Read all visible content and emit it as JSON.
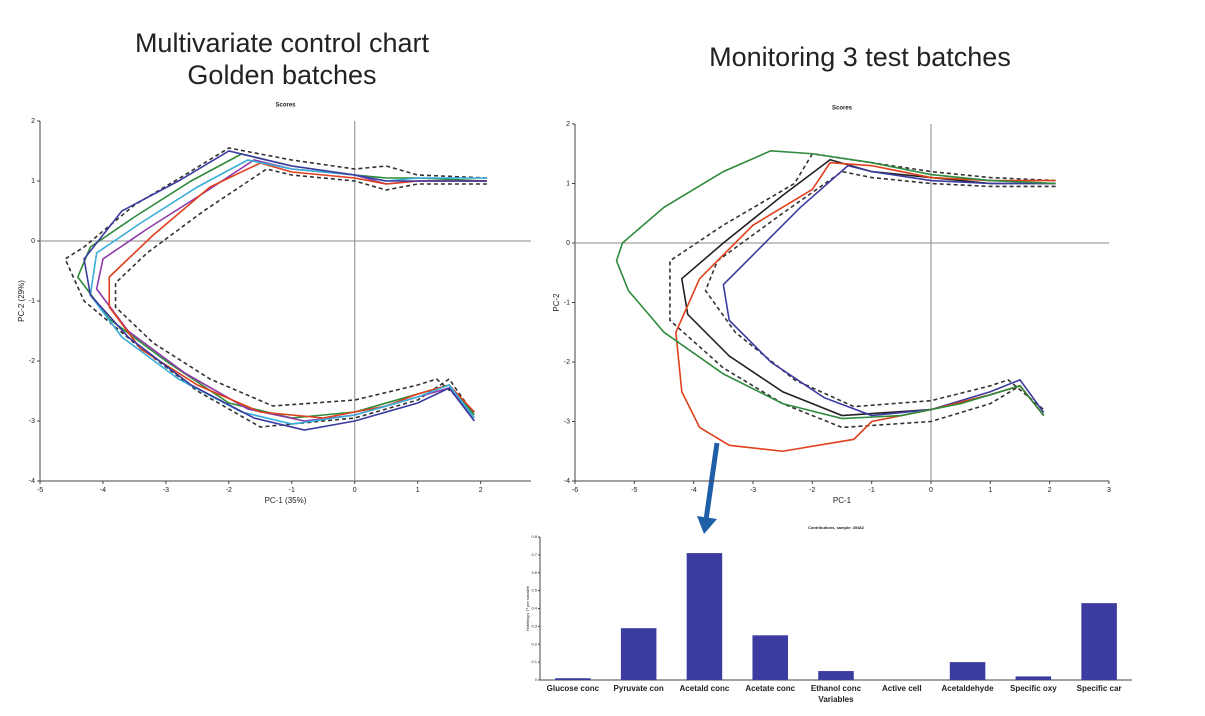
{
  "headings": {
    "left": [
      "Multivariate control chart",
      "Golden batches"
    ],
    "right": "Monitoring 3 test batches"
  },
  "chart_data": [
    {
      "type": "line",
      "title": "Scores",
      "x_label": "PC-1 (35%)",
      "y_label": "PC-2 (29%)",
      "xlim": [
        -5,
        2.8
      ],
      "ylim": [
        -4,
        2
      ],
      "xticks": [
        -5,
        -4,
        -3,
        -2,
        -1,
        0,
        1,
        2
      ],
      "yticks": [
        -4,
        -3,
        -2,
        -1,
        0,
        1,
        2
      ],
      "zero_lines": true,
      "series": [
        {
          "color": "#333333",
          "dash": true,
          "x": [
            2.1,
            1,
            0.5,
            0,
            -1,
            -2,
            -2.7,
            -3.5,
            -4.3,
            -4.6,
            -4.3,
            -3.5,
            -2.5,
            -1.5,
            0,
            1,
            1.5,
            1.9
          ],
          "values": [
            1.05,
            1.1,
            1.25,
            1.2,
            1.35,
            1.55,
            1.1,
            0.6,
            -0.1,
            -0.3,
            -1.0,
            -1.7,
            -2.5,
            -3.1,
            -2.95,
            -2.65,
            -2.3,
            -2.9
          ]
        },
        {
          "color": "#333333",
          "dash": true,
          "x": [
            2.1,
            1,
            0.5,
            0,
            -1,
            -1.4,
            -2.4,
            -3.3,
            -3.8,
            -3.8,
            -3.2,
            -2.3,
            -1.3,
            0,
            1,
            1.3,
            1.9
          ],
          "values": [
            0.95,
            0.95,
            0.85,
            1.0,
            1.1,
            1.2,
            0.5,
            -0.2,
            -0.7,
            -1.1,
            -1.7,
            -2.3,
            -2.75,
            -2.65,
            -2.4,
            -2.3,
            -2.85
          ]
        },
        {
          "color": "#2e8b3a",
          "dash": false,
          "x": [
            2.1,
            1,
            0.5,
            0,
            -1,
            -1.8,
            -2.6,
            -3.5,
            -4.2,
            -4.4,
            -3.9,
            -3.0,
            -2.0,
            -1,
            0,
            1,
            1.5,
            1.9
          ],
          "values": [
            1.0,
            1.05,
            1.05,
            1.1,
            1.25,
            1.45,
            1.0,
            0.4,
            -0.1,
            -0.6,
            -1.3,
            -2.0,
            -2.7,
            -2.95,
            -2.85,
            -2.55,
            -2.4,
            -2.9
          ]
        },
        {
          "color": "#8e3aa8",
          "dash": false,
          "x": [
            2.1,
            1,
            0.5,
            0,
            -1,
            -1.6,
            -2.4,
            -3.3,
            -4.0,
            -4.1,
            -3.6,
            -2.7,
            -1.7,
            -0.8,
            0,
            1,
            1.5,
            1.9
          ],
          "values": [
            1.0,
            1.0,
            0.95,
            1.1,
            1.2,
            1.35,
            0.8,
            0.2,
            -0.3,
            -0.8,
            -1.5,
            -2.2,
            -2.8,
            -3.0,
            -2.9,
            -2.6,
            -2.45,
            -2.95
          ]
        },
        {
          "color": "#e0401c",
          "dash": false,
          "x": [
            2.1,
            1,
            0.5,
            0,
            -1,
            -1.5,
            -2.3,
            -3.2,
            -3.9,
            -3.9,
            -3.4,
            -2.5,
            -1.5,
            -0.5,
            0.5,
            1,
            1.5,
            1.9
          ],
          "values": [
            1.0,
            1.0,
            0.95,
            1.05,
            1.15,
            1.3,
            0.9,
            0.1,
            -0.6,
            -1.1,
            -1.8,
            -2.4,
            -2.85,
            -2.95,
            -2.75,
            -2.55,
            -2.4,
            -2.85
          ]
        },
        {
          "color": "#3aaed8",
          "dash": false,
          "x": [
            2.1,
            1,
            0.5,
            0,
            -1,
            -1.7,
            -2.5,
            -3.4,
            -4.1,
            -4.2,
            -3.7,
            -2.8,
            -1.8,
            -1,
            0,
            1,
            1.5,
            1.9
          ],
          "values": [
            1.05,
            1.05,
            1.0,
            1.1,
            1.2,
            1.35,
            0.9,
            0.3,
            -0.2,
            -0.9,
            -1.6,
            -2.3,
            -2.85,
            -3.05,
            -2.9,
            -2.6,
            -2.4,
            -2.95
          ]
        },
        {
          "color": "#3b3ba0",
          "dash": false,
          "x": [
            2.1,
            1,
            0.5,
            0,
            -1,
            -2,
            -2.8,
            -3.7,
            -4.3,
            -4.2,
            -3.6,
            -2.6,
            -1.6,
            -0.8,
            0,
            1,
            1.5,
            1.9
          ],
          "values": [
            1.0,
            1.0,
            1.0,
            1.1,
            1.25,
            1.5,
            1.0,
            0.5,
            -0.3,
            -0.9,
            -1.6,
            -2.4,
            -2.95,
            -3.15,
            -3.0,
            -2.7,
            -2.45,
            -3.0
          ]
        }
      ]
    },
    {
      "type": "line",
      "title": "Scores",
      "x_label": "PC-1",
      "y_label": "PC-2",
      "xlim": [
        -6,
        3
      ],
      "ylim": [
        -4,
        2
      ],
      "xticks": [
        -6,
        -5,
        -4,
        -3,
        -2,
        -1,
        0,
        1,
        2,
        3
      ],
      "yticks": [
        -4,
        -3,
        -2,
        -1,
        0,
        1,
        2
      ],
      "zero_lines": true,
      "series": [
        {
          "color": "#333333",
          "dash": true,
          "x": [
            2.1,
            1,
            0,
            -1,
            -2,
            -2.3,
            -3.5,
            -4.4,
            -4.4,
            -3.5,
            -2.5,
            -1.5,
            0,
            1,
            1.5,
            1.9
          ],
          "values": [
            1.05,
            1.1,
            1.2,
            1.35,
            1.5,
            1.0,
            0.3,
            -0.3,
            -1.3,
            -2.1,
            -2.7,
            -3.1,
            -3.0,
            -2.7,
            -2.4,
            -2.9
          ]
        },
        {
          "color": "#333333",
          "dash": true,
          "x": [
            2.1,
            1,
            0,
            -1,
            -1.5,
            -2.5,
            -3.6,
            -3.8,
            -3.3,
            -2.3,
            -1.3,
            0,
            1,
            1.3,
            1.9
          ],
          "values": [
            0.95,
            0.95,
            1.0,
            1.1,
            1.2,
            0.5,
            -0.3,
            -0.8,
            -1.5,
            -2.3,
            -2.75,
            -2.65,
            -2.4,
            -2.3,
            -2.8
          ]
        },
        {
          "color": "#222222",
          "dash": false,
          "x": [
            2.1,
            1,
            0,
            -1,
            -1.7,
            -2.5,
            -3.5,
            -4.2,
            -4.1,
            -3.4,
            -2.5,
            -1.5,
            0,
            1,
            1.5,
            1.9
          ],
          "values": [
            1.0,
            1.0,
            1.1,
            1.2,
            1.4,
            0.8,
            0.0,
            -0.6,
            -1.2,
            -1.9,
            -2.5,
            -2.9,
            -2.8,
            -2.55,
            -2.4,
            -2.9
          ]
        },
        {
          "color": "#3b3ba0",
          "dash": false,
          "x": [
            2.1,
            1,
            0,
            -1,
            -1.4,
            -2.2,
            -3.0,
            -3.5,
            -3.4,
            -2.7,
            -1.8,
            -1,
            0,
            1,
            1.5,
            1.9
          ],
          "values": [
            1.0,
            1.0,
            1.05,
            1.2,
            1.3,
            0.6,
            -0.2,
            -0.7,
            -1.3,
            -2.0,
            -2.6,
            -2.9,
            -2.8,
            -2.5,
            -2.3,
            -2.85
          ]
        },
        {
          "color": "#e0401c",
          "dash": false,
          "x": [
            2.1,
            1,
            0,
            -1,
            -1.7,
            -2,
            -3,
            -3.9,
            -4.3,
            -4.2,
            -3.9,
            -3.4,
            -2.5,
            -1.3,
            -1,
            0,
            1,
            1.5,
            1.9
          ],
          "values": [
            1.05,
            1.05,
            1.1,
            1.3,
            1.35,
            0.9,
            0.3,
            -0.6,
            -1.5,
            -2.5,
            -3.1,
            -3.4,
            -3.5,
            -3.3,
            -3.0,
            -2.8,
            -2.55,
            -2.4,
            -2.9
          ]
        },
        {
          "color": "#2e8b3a",
          "dash": false,
          "x": [
            2.1,
            1,
            0,
            -1,
            -2,
            -2.7,
            -3.5,
            -4.5,
            -5.2,
            -5.3,
            -5.1,
            -4.5,
            -3.5,
            -2.5,
            -1.5,
            -0.5,
            0.5,
            1,
            1.5,
            1.9
          ],
          "values": [
            1.0,
            1.05,
            1.15,
            1.35,
            1.5,
            1.55,
            1.2,
            0.6,
            0.0,
            -0.3,
            -0.8,
            -1.5,
            -2.2,
            -2.7,
            -2.95,
            -2.9,
            -2.7,
            -2.55,
            -2.4,
            -2.9
          ]
        }
      ]
    },
    {
      "type": "bar",
      "title": "Contributions, sample: 35482",
      "x_label": "Variables",
      "y_label": "Hotelling's T² per variable",
      "categories": [
        "Glucose conc",
        "Pyruvate con",
        "Acetald conc",
        "Acetate conc",
        "Ethanol conc",
        "Active cell",
        "Acetaldehyde",
        "Specific oxy",
        "Specific car"
      ],
      "values": [
        0.01,
        0.29,
        0.71,
        0.25,
        0.05,
        0,
        0.1,
        0.02,
        0.43
      ],
      "color": "#3b3ba0",
      "ylim": [
        0,
        0.8
      ],
      "yticks": [
        0,
        0.1,
        0.2,
        0.3,
        0.4,
        0.5,
        0.6,
        0.7,
        0.8
      ]
    }
  ]
}
